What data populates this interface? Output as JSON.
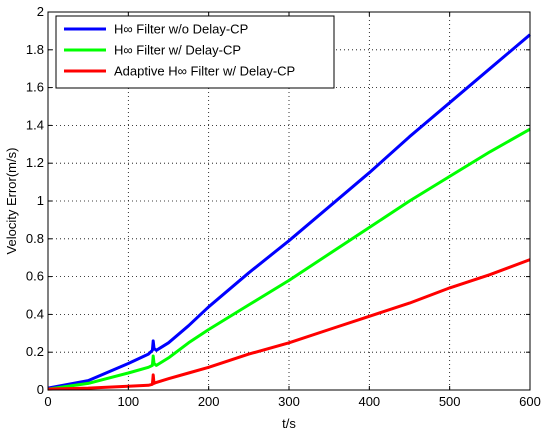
{
  "chart_data": {
    "type": "line",
    "title": "",
    "xlabel": "t/s",
    "ylabel": "Velocity Error(m/s)",
    "xlim": [
      0,
      600
    ],
    "ylim": [
      0,
      2
    ],
    "xticks": [
      "0",
      "100",
      "200",
      "300",
      "400",
      "500",
      "600"
    ],
    "yticks": [
      "0",
      "0.2",
      "0.4",
      "0.6",
      "0.8",
      "1",
      "1.2",
      "1.4",
      "1.6",
      "1.8",
      "2"
    ],
    "grid": true,
    "legend_position": "top-left",
    "series": [
      {
        "name": "H∞ Filter w/o Delay-CP",
        "color": "#0000ff",
        "x": [
          0,
          50,
          100,
          125,
          130,
          131,
          132,
          135,
          150,
          175,
          200,
          250,
          300,
          350,
          400,
          450,
          500,
          550,
          600
        ],
        "y": [
          0.01,
          0.05,
          0.14,
          0.19,
          0.21,
          0.26,
          0.22,
          0.21,
          0.25,
          0.34,
          0.44,
          0.62,
          0.79,
          0.97,
          1.15,
          1.34,
          1.52,
          1.7,
          1.88
        ]
      },
      {
        "name": "H∞ Filter w/ Delay-CP",
        "color": "#00ff00",
        "x": [
          0,
          50,
          100,
          125,
          130,
          131,
          132,
          135,
          150,
          175,
          200,
          250,
          300,
          350,
          400,
          450,
          500,
          550,
          600
        ],
        "y": [
          0.005,
          0.035,
          0.09,
          0.12,
          0.13,
          0.18,
          0.14,
          0.13,
          0.17,
          0.25,
          0.32,
          0.45,
          0.58,
          0.72,
          0.86,
          1.0,
          1.13,
          1.26,
          1.38
        ]
      },
      {
        "name": "Adaptive H∞ Filter w/ Delay-CP",
        "color": "#ff0000",
        "x": [
          0,
          50,
          100,
          125,
          130,
          131,
          132,
          135,
          150,
          175,
          200,
          250,
          300,
          350,
          400,
          450,
          500,
          550,
          600
        ],
        "y": [
          0.005,
          0.01,
          0.02,
          0.025,
          0.03,
          0.08,
          0.035,
          0.04,
          0.06,
          0.09,
          0.12,
          0.19,
          0.25,
          0.32,
          0.39,
          0.46,
          0.54,
          0.61,
          0.69
        ]
      }
    ]
  }
}
